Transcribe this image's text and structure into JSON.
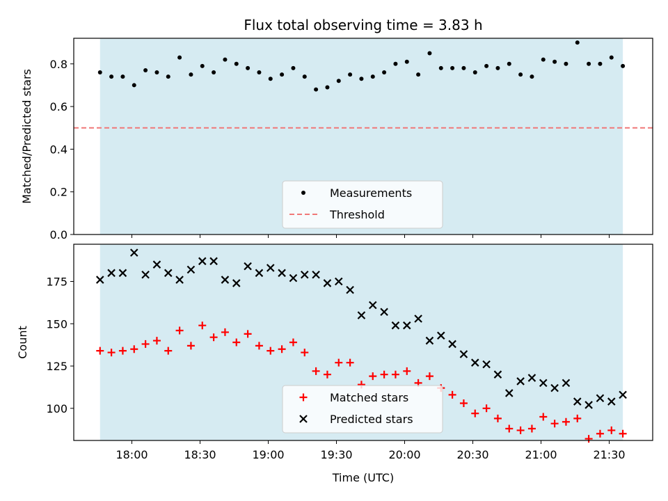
{
  "chart_data": {
    "type": "scatter",
    "title": "Flux total observing time = 3.83 h",
    "xlabel": "Time (UTC)",
    "x_ticks": [
      "18:00",
      "18:30",
      "19:00",
      "19:30",
      "20:00",
      "20:30",
      "21:00",
      "21:30"
    ],
    "colors": {
      "shade": "#add8e6",
      "threshold": "#f07878",
      "matched": "#ff0000",
      "predicted": "#000000",
      "measurement": "#000000"
    },
    "panels": [
      {
        "ylabel": "Matched/Predicted stars",
        "ylim": [
          0.0,
          0.92
        ],
        "y_ticks": [
          "0.0",
          "0.2",
          "0.4",
          "0.6",
          "0.8"
        ],
        "shaded_x_range": [
          "17:46",
          "21:36"
        ],
        "threshold": 0.5,
        "legend": [
          "Measurements",
          "Threshold"
        ],
        "legend_position": "lower center",
        "series": [
          {
            "name": "Measurements",
            "marker": "dot",
            "x": [
              "17:46",
              "17:51",
              "17:56",
              "18:01",
              "18:06",
              "18:11",
              "18:16",
              "18:21",
              "18:26",
              "18:31",
              "18:36",
              "18:41",
              "18:46",
              "18:51",
              "18:56",
              "19:01",
              "19:06",
              "19:11",
              "19:16",
              "19:21",
              "19:26",
              "19:31",
              "19:36",
              "19:41",
              "19:46",
              "19:51",
              "19:56",
              "20:01",
              "20:06",
              "20:11",
              "20:16",
              "20:21",
              "20:26",
              "20:31",
              "20:36",
              "20:41",
              "20:46",
              "20:51",
              "20:56",
              "21:01",
              "21:06",
              "21:11",
              "21:16",
              "21:21",
              "21:26",
              "21:31",
              "21:36"
            ],
            "values": [
              0.76,
              0.74,
              0.74,
              0.7,
              0.77,
              0.76,
              0.74,
              0.83,
              0.75,
              0.79,
              0.76,
              0.82,
              0.8,
              0.78,
              0.76,
              0.73,
              0.75,
              0.78,
              0.74,
              0.68,
              0.69,
              0.72,
              0.75,
              0.73,
              0.74,
              0.76,
              0.8,
              0.81,
              0.75,
              0.85,
              0.78,
              0.78,
              0.78,
              0.76,
              0.79,
              0.78,
              0.8,
              0.75,
              0.74,
              0.82,
              0.81,
              0.8,
              0.9,
              0.8,
              0.8,
              0.83,
              0.79
            ]
          }
        ]
      },
      {
        "ylabel": "Count",
        "ylim": [
          81,
          197
        ],
        "y_ticks": [
          "100",
          "125",
          "150",
          "175"
        ],
        "shaded_x_range": [
          "17:46",
          "21:36"
        ],
        "legend": [
          "Matched stars",
          "Predicted stars"
        ],
        "legend_position": "lower center",
        "series": [
          {
            "name": "Matched stars",
            "marker": "plus",
            "x": [
              "17:46",
              "17:51",
              "17:56",
              "18:01",
              "18:06",
              "18:11",
              "18:16",
              "18:21",
              "18:26",
              "18:31",
              "18:36",
              "18:41",
              "18:46",
              "18:51",
              "18:56",
              "19:01",
              "19:06",
              "19:11",
              "19:16",
              "19:21",
              "19:26",
              "19:31",
              "19:36",
              "19:41",
              "19:46",
              "19:51",
              "19:56",
              "20:01",
              "20:06",
              "20:11",
              "20:16",
              "20:21",
              "20:26",
              "20:31",
              "20:36",
              "20:41",
              "20:46",
              "20:51",
              "20:56",
              "21:01",
              "21:06",
              "21:11",
              "21:16",
              "21:21",
              "21:26",
              "21:31",
              "21:36"
            ],
            "values": [
              134,
              133,
              134,
              135,
              138,
              140,
              134,
              146,
              137,
              149,
              142,
              145,
              139,
              144,
              137,
              134,
              135,
              139,
              133,
              122,
              120,
              127,
              127,
              114,
              119,
              120,
              120,
              122,
              115,
              119,
              112,
              108,
              103,
              97,
              100,
              94,
              88,
              87,
              88,
              95,
              91,
              92,
              94,
              82,
              85,
              87,
              85
            ]
          },
          {
            "name": "Predicted stars",
            "marker": "x",
            "x": [
              "17:46",
              "17:51",
              "17:56",
              "18:01",
              "18:06",
              "18:11",
              "18:16",
              "18:21",
              "18:26",
              "18:31",
              "18:36",
              "18:41",
              "18:46",
              "18:51",
              "18:56",
              "19:01",
              "19:06",
              "19:11",
              "19:16",
              "19:21",
              "19:26",
              "19:31",
              "19:36",
              "19:41",
              "19:46",
              "19:51",
              "19:56",
              "20:01",
              "20:06",
              "20:11",
              "20:16",
              "20:21",
              "20:26",
              "20:31",
              "20:36",
              "20:41",
              "20:46",
              "20:51",
              "20:56",
              "21:01",
              "21:06",
              "21:11",
              "21:16",
              "21:21",
              "21:26",
              "21:31",
              "21:36"
            ],
            "values": [
              176,
              180,
              180,
              192,
              179,
              185,
              180,
              176,
              182,
              187,
              187,
              176,
              174,
              184,
              180,
              183,
              180,
              177,
              179,
              179,
              174,
              175,
              170,
              155,
              161,
              157,
              149,
              149,
              153,
              140,
              143,
              138,
              132,
              127,
              126,
              120,
              109,
              116,
              118,
              115,
              112,
              115,
              104,
              102,
              106,
              104,
              108
            ]
          }
        ]
      }
    ]
  }
}
